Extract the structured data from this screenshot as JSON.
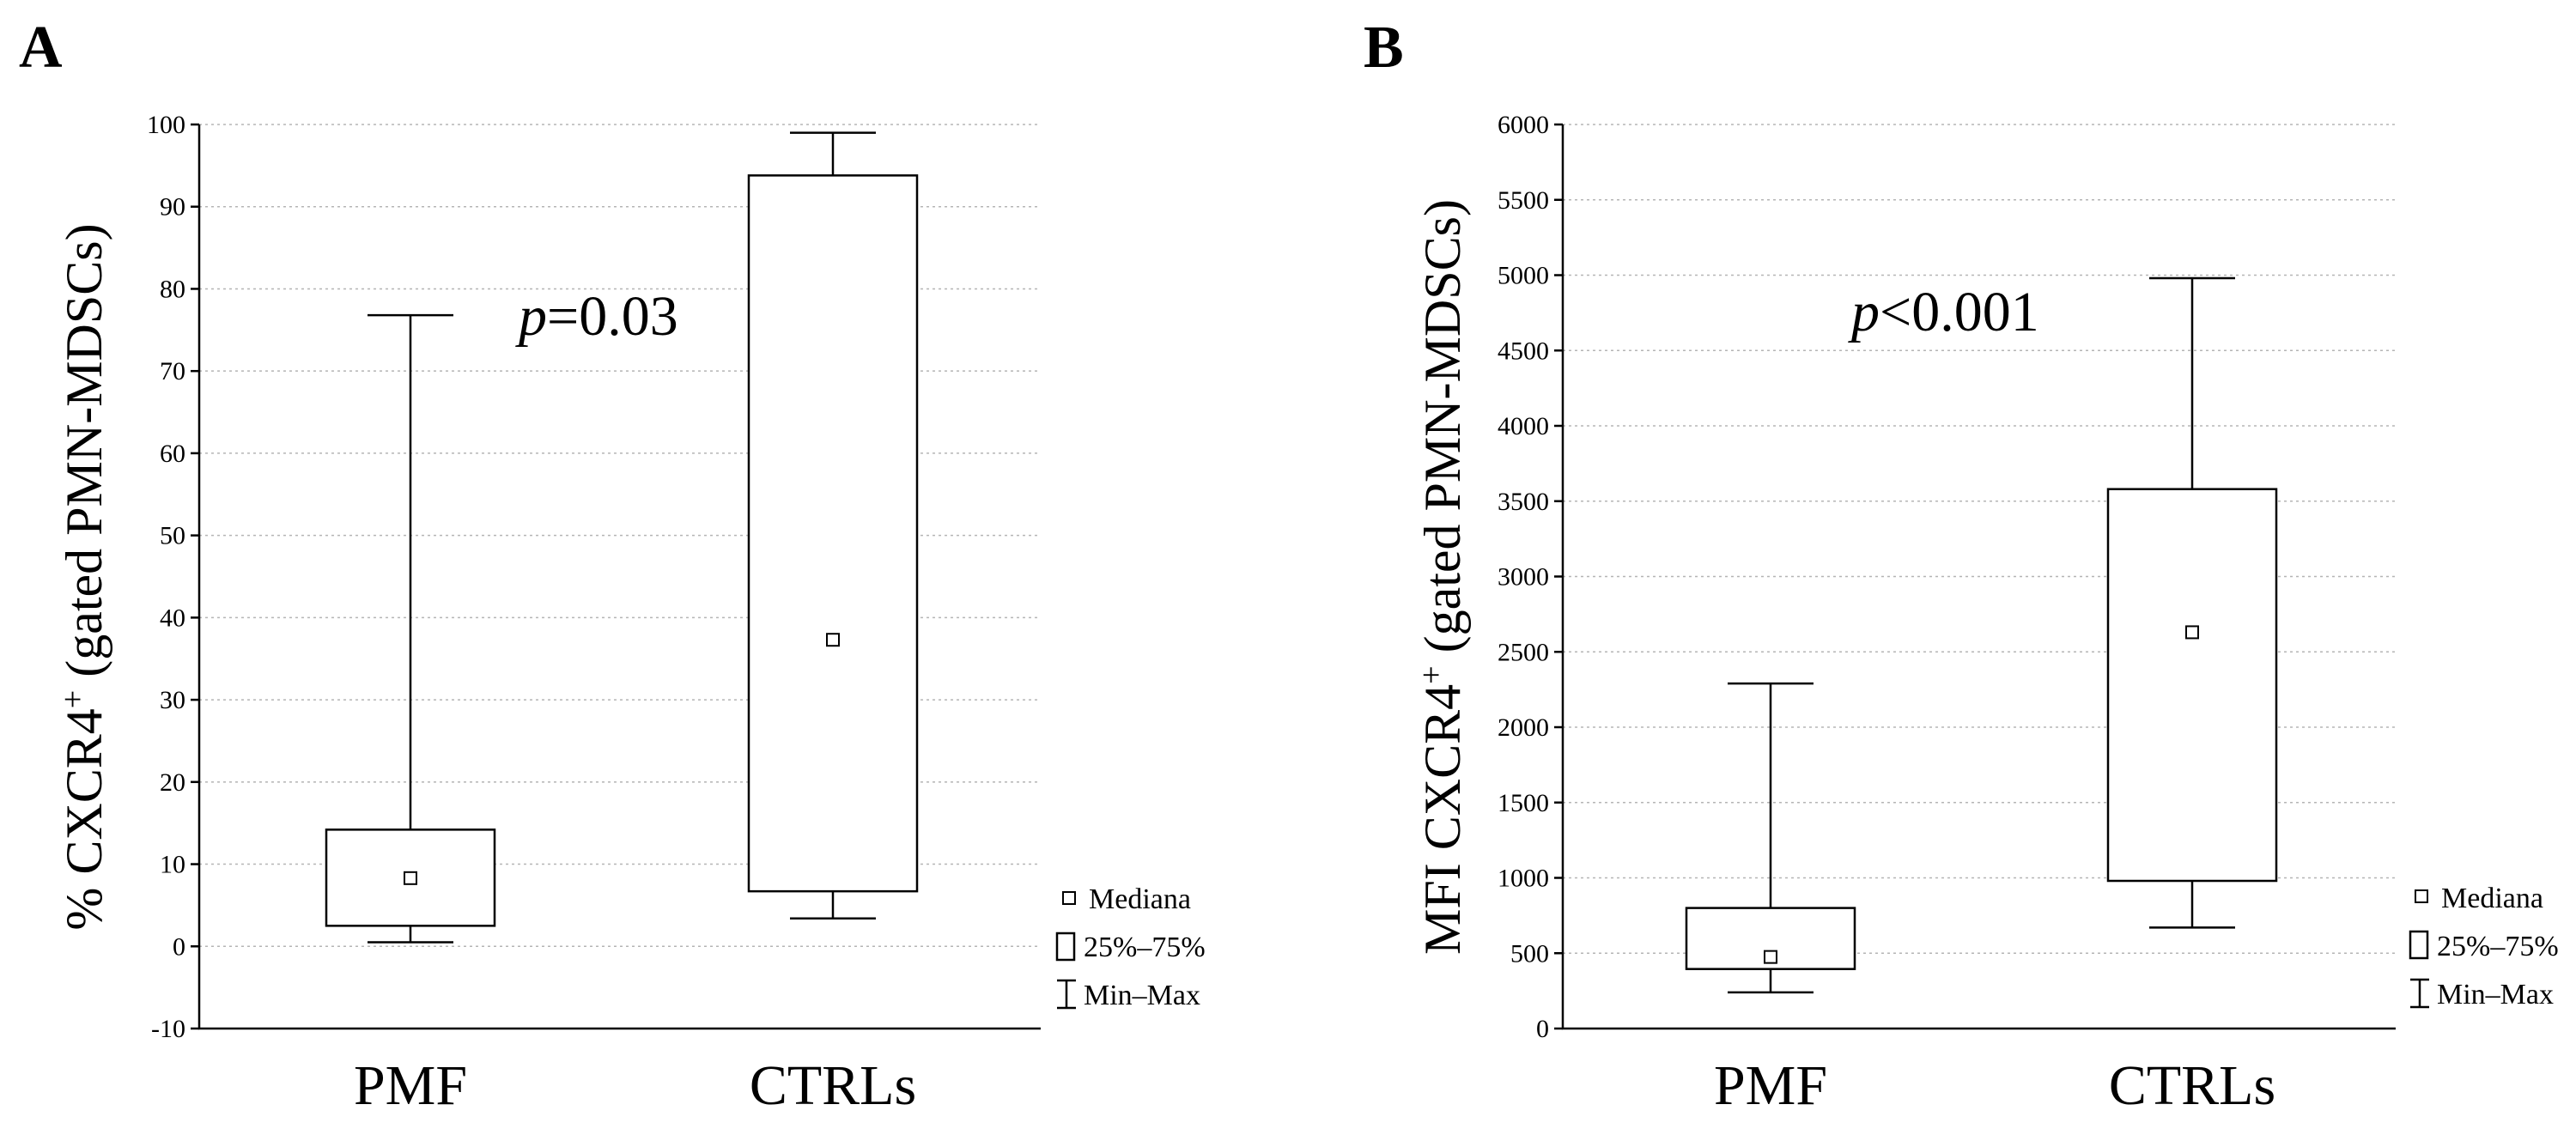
{
  "chart_data": [
    {
      "type": "box",
      "panel_label": "A",
      "ylabel_main": "% CXCR4",
      "ylabel_sup": "+",
      "ylabel_tail": " (gated PMN-MDSCs)",
      "p_italic": "p",
      "p_rest": "=0.03",
      "ylim": [
        -10,
        100
      ],
      "yticks": [
        -10,
        0,
        10,
        20,
        30,
        40,
        50,
        60,
        70,
        80,
        90,
        100
      ],
      "categories": [
        "PMF",
        "CTRLs"
      ],
      "boxes": [
        {
          "name": "PMF",
          "min": 0.5,
          "q1": 2.5,
          "median": 8.3,
          "q3": 14.2,
          "max": 76.8
        },
        {
          "name": "CTRLs",
          "min": 3.4,
          "q1": 6.7,
          "median": 37.3,
          "q3": 93.8,
          "max": 99.0
        }
      ],
      "legend": {
        "median": "Mediana",
        "box": "25%–75%",
        "range": "Min–Max"
      }
    },
    {
      "type": "box",
      "panel_label": "B",
      "ylabel_main": "MFI CXCR4",
      "ylabel_sup": "+",
      "ylabel_tail": " (gated PMN-MDSCs)",
      "p_italic": "p",
      "p_rest": "<0.001",
      "ylim": [
        0,
        6000
      ],
      "yticks": [
        0,
        500,
        1000,
        1500,
        2000,
        2500,
        3000,
        3500,
        4000,
        4500,
        5000,
        5500,
        6000
      ],
      "categories": [
        "PMF",
        "CTRLs"
      ],
      "boxes": [
        {
          "name": "PMF",
          "min": 240,
          "q1": 395,
          "median": 475,
          "q3": 800,
          "max": 2290
        },
        {
          "name": "CTRLs",
          "min": 670,
          "q1": 980,
          "median": 2630,
          "q3": 3580,
          "max": 4980
        }
      ],
      "legend": {
        "median": "Mediana",
        "box": "25%–75%",
        "range": "Min–Max"
      }
    }
  ]
}
